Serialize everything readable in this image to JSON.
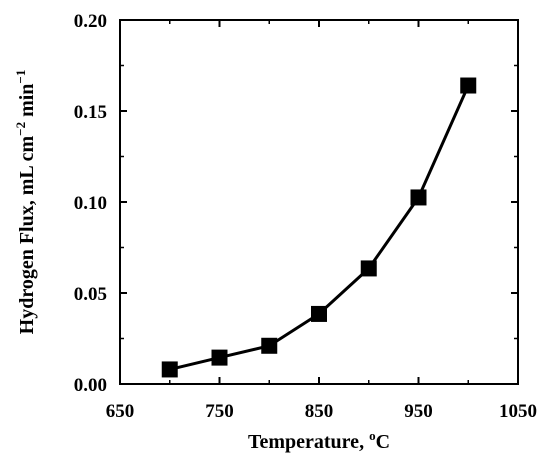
{
  "chart_data": {
    "type": "line",
    "title": "",
    "xlabel": "Temperature, ",
    "xlabel_sup": "o",
    "xlabel_unit": "C",
    "ylabel": "Hydrogen Flux, mL cm",
    "ylabel_exp1": "−2",
    "ylabel_mid": " min",
    "ylabel_exp2": "−1",
    "xlim": [
      650,
      1050
    ],
    "ylim": [
      0.0,
      0.2
    ],
    "x_ticks": [
      "650",
      "750",
      "850",
      "950",
      "1050"
    ],
    "y_ticks": [
      "0.00",
      "0.05",
      "0.10",
      "0.15",
      "0.20"
    ],
    "grid": false,
    "marker": "square",
    "line_color": "#000000",
    "series": [
      {
        "x": [
          700,
          750,
          800,
          850,
          900,
          950,
          1000
        ],
        "y": [
          0.008,
          0.0145,
          0.021,
          0.0385,
          0.0635,
          0.1025,
          0.164
        ]
      }
    ]
  }
}
